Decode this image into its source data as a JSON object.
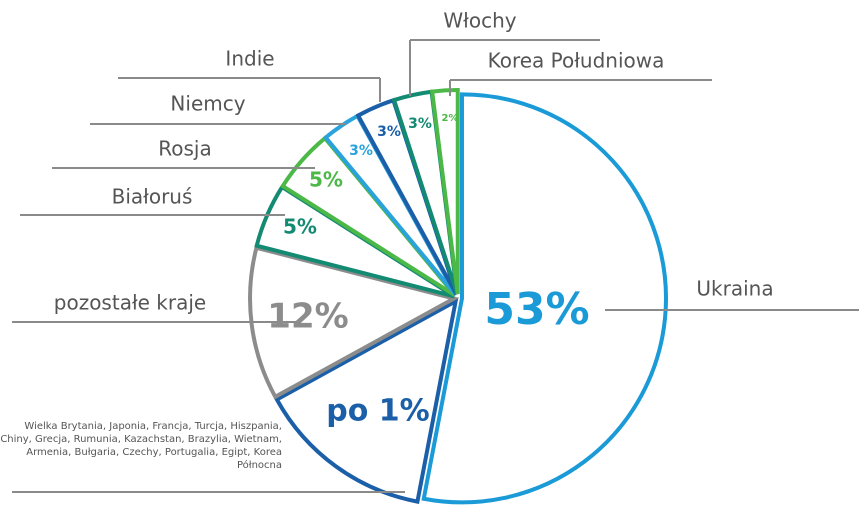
{
  "chart_data": {
    "type": "pie",
    "categories": [
      "Ukraina",
      "Wielka Brytania, Japonia, Francja, Turcja, Hiszpania, Chiny, Grecja, Rumunia, Kazachstan, Brazylia, Wietnam, Armenia, Bułgaria, Czechy, Portugalia, Egipt, Korea Północna",
      "pozostałe kraje",
      "Białoruś",
      "Rosja",
      "Niemcy",
      "Indie",
      "Włochy",
      "Korea Południowa"
    ],
    "values": [
      53,
      14,
      12,
      5,
      5,
      3,
      3,
      3,
      2
    ],
    "value_labels": [
      "53%",
      null,
      "12%",
      "5%",
      "5%",
      "3%",
      "3%",
      "3%",
      "2%"
    ],
    "colors": [
      "#1a9ad6",
      "#1b5fa8",
      "#8c8c8c",
      "#138a72",
      "#4cb848",
      "#2aa3dc",
      "#1b5fa8",
      "#138a72",
      "#4cb848"
    ],
    "annotations": [
      "po 1%"
    ]
  }
}
